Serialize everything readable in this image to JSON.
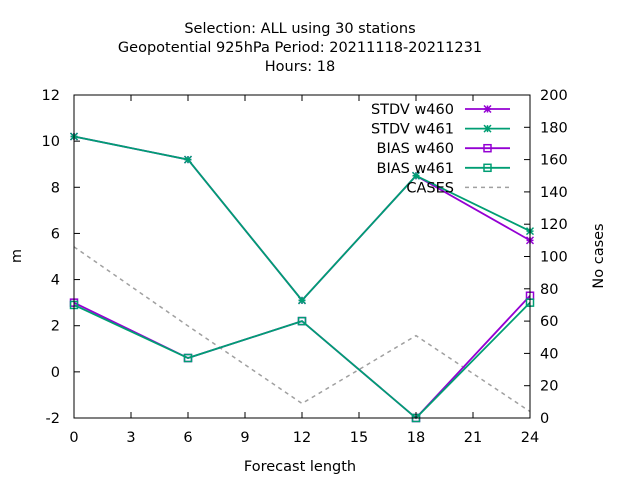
{
  "chart_data": {
    "type": "line",
    "title_lines": [
      "Selection: ALL using    30 stations",
      "Geopotential 925hPa   Period: 20211118-20211231",
      "Hours:  18"
    ],
    "xlabel": "Forecast length",
    "ylabel": "m",
    "y2label": "No cases",
    "xlim": [
      0,
      24
    ],
    "ylim": [
      -2,
      12
    ],
    "y2lim": [
      0,
      200
    ],
    "xticks": [
      0,
      3,
      6,
      9,
      12,
      15,
      18,
      21,
      24
    ],
    "yticks": [
      -2,
      0,
      2,
      4,
      6,
      8,
      10,
      12
    ],
    "y2ticks": [
      0,
      20,
      40,
      60,
      80,
      100,
      120,
      140,
      160,
      180,
      200
    ],
    "grid": false,
    "legend_position": "top-right",
    "x": [
      0,
      6,
      12,
      18,
      24
    ],
    "series": [
      {
        "name": "STDV w460",
        "axis": "y",
        "marker": "star",
        "dash": "solid",
        "color": "#9400d3",
        "values": [
          10.2,
          9.2,
          3.1,
          8.5,
          5.7
        ]
      },
      {
        "name": "STDV w461",
        "axis": "y",
        "marker": "star",
        "dash": "solid",
        "color": "#009e73",
        "values": [
          10.2,
          9.2,
          3.1,
          8.5,
          6.1
        ]
      },
      {
        "name": "BIAS w460",
        "axis": "y",
        "marker": "square",
        "dash": "solid",
        "color": "#9400d3",
        "values": [
          3.0,
          0.6,
          2.2,
          -2.0,
          3.3
        ]
      },
      {
        "name": "BIAS w461",
        "axis": "y",
        "marker": "square",
        "dash": "solid",
        "color": "#009e73",
        "values": [
          2.9,
          0.6,
          2.2,
          -2.0,
          3.0
        ]
      },
      {
        "name": "CASES",
        "axis": "y2",
        "marker": "none",
        "dash": "dashed",
        "color": "#a0a0a0",
        "values": [
          106,
          57,
          9,
          51,
          4
        ]
      }
    ]
  }
}
